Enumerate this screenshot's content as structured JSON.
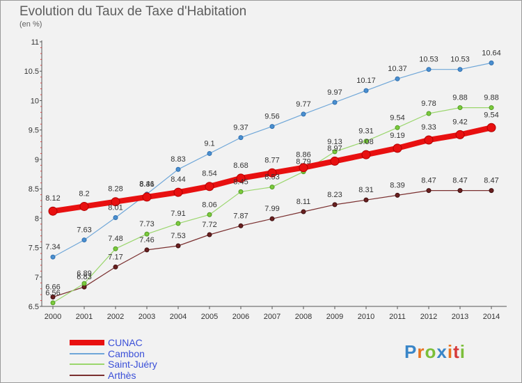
{
  "title": "Evolution du Taux de Taxe d'Habitation",
  "subtitle": "(en %)",
  "logo": {
    "text": "Proxiti",
    "letters": [
      {
        "ch": "P",
        "color": "#3a86c8"
      },
      {
        "ch": "r",
        "color": "#e8731f"
      },
      {
        "ch": "o",
        "color": "#7cbf3a"
      },
      {
        "ch": "x",
        "color": "#3a86c8"
      },
      {
        "ch": "i",
        "color": "#e8731f"
      },
      {
        "ch": "t",
        "color": "#d63a3a"
      },
      {
        "ch": "i",
        "color": "#7cbf3a"
      }
    ]
  },
  "chart_data": {
    "type": "line",
    "title": "Evolution du Taux de Taxe d'Habitation",
    "ylabel": "(en %)",
    "xlabel": "",
    "x": [
      "2000",
      "2001",
      "2002",
      "2003",
      "2004",
      "2005",
      "2006",
      "2007",
      "2008",
      "2009",
      "2010",
      "2011",
      "2012",
      "2013",
      "2014"
    ],
    "ylim": [
      6.5,
      11
    ],
    "yticks": [
      "6.5",
      "7",
      "7.5",
      "8",
      "8.5",
      "9",
      "9.5",
      "10",
      "10.5",
      "11"
    ],
    "grid": false,
    "legend_position": "bottom-left",
    "series": [
      {
        "name": "CUNAC",
        "color": "#e81010",
        "values": [
          8.12,
          8.2,
          8.28,
          8.36,
          8.44,
          8.54,
          8.68,
          8.77,
          8.86,
          8.97,
          9.08,
          9.19,
          9.33,
          9.42,
          9.54
        ]
      },
      {
        "name": "Cambon",
        "color": "#6ea6d8",
        "values": [
          7.34,
          7.63,
          8.01,
          8.41,
          8.83,
          9.1,
          9.37,
          9.56,
          9.77,
          9.97,
          10.17,
          10.37,
          10.53,
          10.53,
          10.64
        ]
      },
      {
        "name": "Saint-Juéry",
        "color": "#9ad66c",
        "values": [
          6.56,
          6.89,
          7.48,
          7.73,
          7.91,
          8.06,
          8.45,
          8.53,
          8.79,
          9.13,
          9.31,
          9.54,
          9.78,
          9.88,
          9.88
        ]
      },
      {
        "name": "Arthès",
        "color": "#7a2f2f",
        "values": [
          6.66,
          6.83,
          7.17,
          7.46,
          7.53,
          7.72,
          7.87,
          7.99,
          8.11,
          8.23,
          8.31,
          8.39,
          8.47,
          8.47,
          8.47
        ]
      }
    ]
  }
}
